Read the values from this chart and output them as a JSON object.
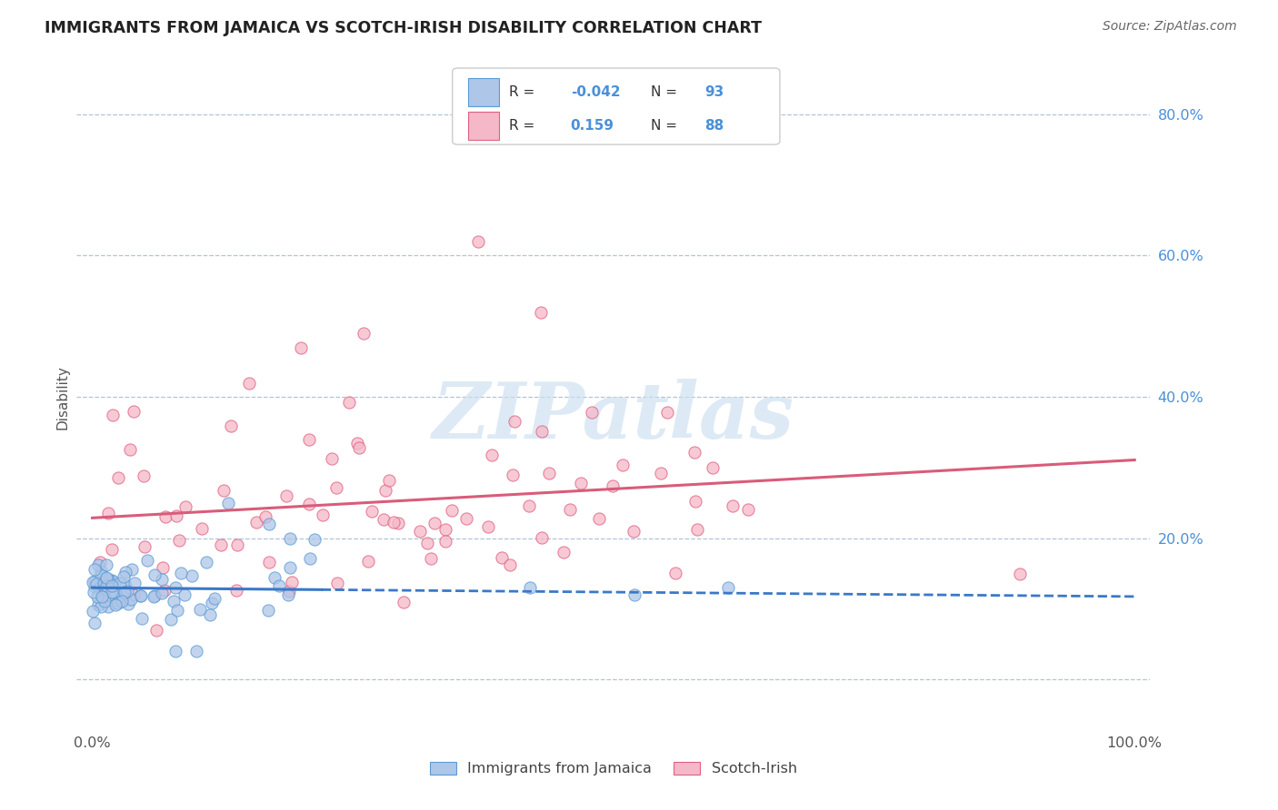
{
  "title": "IMMIGRANTS FROM JAMAICA VS SCOTCH-IRISH DISABILITY CORRELATION CHART",
  "source": "Source: ZipAtlas.com",
  "ylabel": "Disability",
  "legend_label1": "Immigrants from Jamaica",
  "legend_label2": "Scotch-Irish",
  "R1": -0.042,
  "N1": 93,
  "R2": 0.159,
  "N2": 88,
  "color_blue_fill": "#aec6e8",
  "color_blue_edge": "#5b9bd5",
  "color_pink_fill": "#f5b8c8",
  "color_pink_edge": "#e06080",
  "color_blue_line_solid": "#3a78c9",
  "color_pink_line": "#d95c7a",
  "watermark": "ZIPatlas",
  "background_color": "#ffffff",
  "grid_color": "#b0c4d8",
  "title_color": "#222222",
  "source_color": "#666666",
  "tick_color": "#4a90d9",
  "ytick_vals": [
    0.0,
    0.2,
    0.4,
    0.6,
    0.8
  ],
  "ytick_labels": [
    "",
    "20.0%",
    "40.0%",
    "60.0%",
    "80.0%"
  ]
}
